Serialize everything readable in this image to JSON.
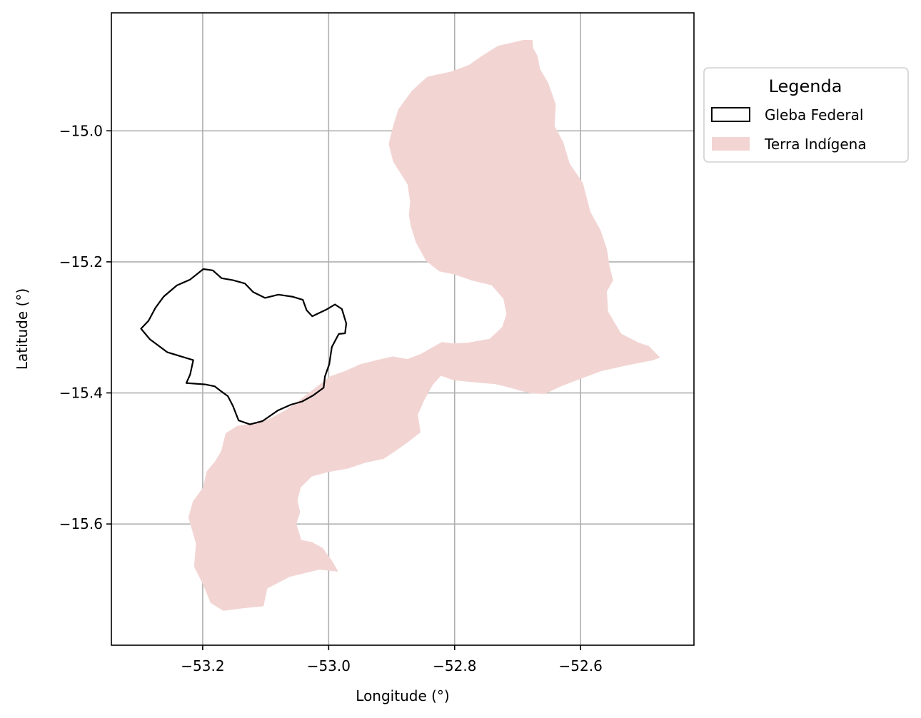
{
  "chart_data": {
    "type": "map",
    "xlabel": "Longitude (°)",
    "ylabel": "Latitude (°)",
    "xlim": [
      -53.345,
      -52.42
    ],
    "ylim": [
      -15.785,
      -14.82
    ],
    "xticks": [
      -53.2,
      -53.0,
      -52.8,
      -52.6
    ],
    "xtick_labels": [
      "−53.2",
      "−53.0",
      "−52.8",
      "−52.6"
    ],
    "yticks": [
      -15.0,
      -15.2,
      -15.4,
      -15.6
    ],
    "ytick_labels": [
      "−15.0",
      "−15.2",
      "−15.4",
      "−15.6"
    ],
    "grid": true,
    "legend": {
      "title": "Legenda",
      "placement": "outside-upper-right",
      "entries": [
        {
          "label": "Gleba Federal",
          "style": "outline",
          "color": "#000000"
        },
        {
          "label": "Terra Indígena",
          "style": "fill",
          "color": "#f2d5d3"
        }
      ]
    },
    "series": [
      {
        "layer": "terra-indigena",
        "style": "fill",
        "color": "#f2d5d3",
        "coordinates": [
          [
            -52.691,
            -14.862
          ],
          [
            -52.677,
            -14.862
          ],
          [
            -52.676,
            -14.874
          ],
          [
            -52.669,
            -14.886
          ],
          [
            -52.665,
            -14.906
          ],
          [
            -52.652,
            -14.927
          ],
          [
            -52.64,
            -14.96
          ],
          [
            -52.642,
            -14.993
          ],
          [
            -52.628,
            -15.018
          ],
          [
            -52.618,
            -15.05
          ],
          [
            -52.597,
            -15.08
          ],
          [
            -52.585,
            -15.124
          ],
          [
            -52.569,
            -15.152
          ],
          [
            -52.559,
            -15.18
          ],
          [
            -52.555,
            -15.205
          ],
          [
            -52.549,
            -15.228
          ],
          [
            -52.559,
            -15.245
          ],
          [
            -52.557,
            -15.276
          ],
          [
            -52.536,
            -15.31
          ],
          [
            -52.508,
            -15.324
          ],
          [
            -52.492,
            -15.329
          ],
          [
            -52.475,
            -15.346
          ],
          [
            -52.487,
            -15.35
          ],
          [
            -52.525,
            -15.357
          ],
          [
            -52.567,
            -15.366
          ],
          [
            -52.598,
            -15.377
          ],
          [
            -52.633,
            -15.39
          ],
          [
            -52.657,
            -15.401
          ],
          [
            -52.68,
            -15.4
          ],
          [
            -52.71,
            -15.392
          ],
          [
            -52.735,
            -15.386
          ],
          [
            -52.76,
            -15.384
          ],
          [
            -52.781,
            -15.382
          ],
          [
            -52.802,
            -15.38
          ],
          [
            -52.822,
            -15.373
          ],
          [
            -52.835,
            -15.387
          ],
          [
            -52.849,
            -15.411
          ],
          [
            -52.859,
            -15.433
          ],
          [
            -52.855,
            -15.46
          ],
          [
            -52.875,
            -15.475
          ],
          [
            -52.894,
            -15.488
          ],
          [
            -52.913,
            -15.5
          ],
          [
            -52.942,
            -15.506
          ],
          [
            -52.97,
            -15.515
          ],
          [
            -53.0,
            -15.52
          ],
          [
            -53.027,
            -15.527
          ],
          [
            -53.045,
            -15.544
          ],
          [
            -53.05,
            -15.564
          ],
          [
            -53.046,
            -15.582
          ],
          [
            -53.052,
            -15.6
          ],
          [
            -53.044,
            -15.625
          ],
          [
            -53.027,
            -15.628
          ],
          [
            -53.01,
            -15.637
          ],
          [
            -52.995,
            -15.657
          ],
          [
            -52.986,
            -15.672
          ],
          [
            -53.015,
            -15.669
          ],
          [
            -53.036,
            -15.674
          ],
          [
            -53.062,
            -15.68
          ],
          [
            -53.098,
            -15.698
          ],
          [
            -53.104,
            -15.725
          ],
          [
            -53.136,
            -15.728
          ],
          [
            -53.167,
            -15.732
          ],
          [
            -53.187,
            -15.72
          ],
          [
            -53.199,
            -15.692
          ],
          [
            -53.213,
            -15.665
          ],
          [
            -53.21,
            -15.63
          ],
          [
            -53.222,
            -15.59
          ],
          [
            -53.215,
            -15.566
          ],
          [
            -53.199,
            -15.545
          ],
          [
            -53.193,
            -15.52
          ],
          [
            -53.18,
            -15.505
          ],
          [
            -53.17,
            -15.489
          ],
          [
            -53.163,
            -15.462
          ],
          [
            -53.145,
            -15.451
          ],
          [
            -53.12,
            -15.447
          ],
          [
            -53.093,
            -15.44
          ],
          [
            -53.065,
            -15.425
          ],
          [
            -53.041,
            -15.408
          ],
          [
            -53.017,
            -15.39
          ],
          [
            -52.997,
            -15.375
          ],
          [
            -52.973,
            -15.367
          ],
          [
            -52.95,
            -15.357
          ],
          [
            -52.921,
            -15.35
          ],
          [
            -52.898,
            -15.345
          ],
          [
            -52.875,
            -15.349
          ],
          [
            -52.853,
            -15.341
          ],
          [
            -52.835,
            -15.331
          ],
          [
            -52.82,
            -15.323
          ],
          [
            -52.803,
            -15.325
          ],
          [
            -52.779,
            -15.324
          ],
          [
            -52.744,
            -15.318
          ],
          [
            -52.724,
            -15.3
          ],
          [
            -52.717,
            -15.28
          ],
          [
            -52.722,
            -15.256
          ],
          [
            -52.741,
            -15.235
          ],
          [
            -52.772,
            -15.228
          ],
          [
            -52.799,
            -15.219
          ],
          [
            -52.824,
            -15.214
          ],
          [
            -52.845,
            -15.198
          ],
          [
            -52.861,
            -15.17
          ],
          [
            -52.869,
            -15.145
          ],
          [
            -52.872,
            -15.128
          ],
          [
            -52.87,
            -15.108
          ],
          [
            -52.874,
            -15.082
          ],
          [
            -52.885,
            -15.065
          ],
          [
            -52.897,
            -15.047
          ],
          [
            -52.904,
            -15.02
          ],
          [
            -52.897,
            -14.993
          ],
          [
            -52.889,
            -14.968
          ],
          [
            -52.868,
            -14.94
          ],
          [
            -52.843,
            -14.918
          ],
          [
            -52.804,
            -14.91
          ],
          [
            -52.777,
            -14.9
          ],
          [
            -52.756,
            -14.886
          ],
          [
            -52.731,
            -14.871
          ],
          [
            -52.708,
            -14.866
          ]
        ]
      },
      {
        "layer": "gleba-federal",
        "style": "outline",
        "color": "#000000",
        "coordinates": [
          [
            -53.199,
            -15.211
          ],
          [
            -53.184,
            -15.213
          ],
          [
            -53.17,
            -15.225
          ],
          [
            -53.152,
            -15.228
          ],
          [
            -53.133,
            -15.233
          ],
          [
            -53.12,
            -15.246
          ],
          [
            -53.101,
            -15.255
          ],
          [
            -53.08,
            -15.25
          ],
          [
            -53.058,
            -15.253
          ],
          [
            -53.041,
            -15.258
          ],
          [
            -53.035,
            -15.274
          ],
          [
            -53.026,
            -15.283
          ],
          [
            -53.004,
            -15.273
          ],
          [
            -52.99,
            -15.265
          ],
          [
            -52.979,
            -15.272
          ],
          [
            -52.972,
            -15.294
          ],
          [
            -52.974,
            -15.309
          ],
          [
            -52.984,
            -15.31
          ],
          [
            -52.995,
            -15.33
          ],
          [
            -52.999,
            -15.356
          ],
          [
            -53.006,
            -15.375
          ],
          [
            -53.008,
            -15.392
          ],
          [
            -53.025,
            -15.404
          ],
          [
            -53.042,
            -15.413
          ],
          [
            -53.06,
            -15.418
          ],
          [
            -53.081,
            -15.427
          ],
          [
            -53.105,
            -15.443
          ],
          [
            -53.125,
            -15.448
          ],
          [
            -53.143,
            -15.442
          ],
          [
            -53.152,
            -15.42
          ],
          [
            -53.16,
            -15.405
          ],
          [
            -53.17,
            -15.398
          ],
          [
            -53.181,
            -15.39
          ],
          [
            -53.196,
            -15.387
          ],
          [
            -53.226,
            -15.385
          ],
          [
            -53.22,
            -15.372
          ],
          [
            -53.215,
            -15.35
          ],
          [
            -53.256,
            -15.338
          ],
          [
            -53.284,
            -15.318
          ],
          [
            -53.298,
            -15.302
          ],
          [
            -53.286,
            -15.29
          ],
          [
            -53.275,
            -15.27
          ],
          [
            -53.262,
            -15.253
          ],
          [
            -53.241,
            -15.236
          ],
          [
            -53.22,
            -15.227
          ]
        ]
      }
    ]
  }
}
